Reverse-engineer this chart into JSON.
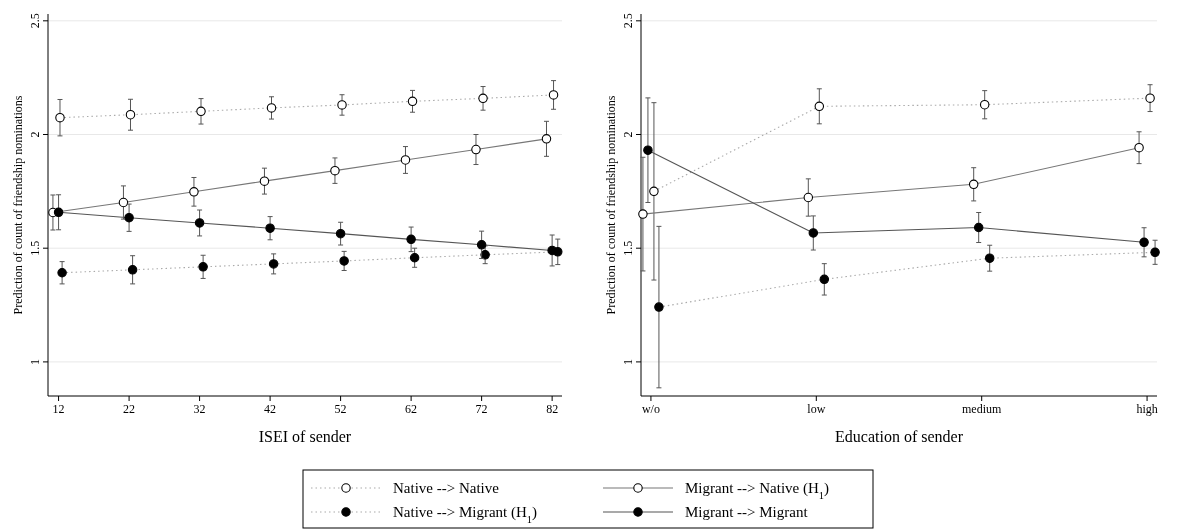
{
  "chart_data": [
    {
      "type": "line",
      "xlabel": "ISEI of sender",
      "ylabel": "Prediction of count of friendship nominations",
      "xlim": [
        10.5,
        83.4
      ],
      "xticks": [
        12,
        22,
        32,
        42,
        52,
        62,
        72,
        82
      ],
      "ylim": [
        0.85,
        2.53
      ],
      "yticks": [
        1,
        1.5,
        2,
        2.5
      ],
      "grid": "y",
      "legend": "bottom",
      "marker": "circle",
      "series": [
        {
          "name": "Native --> Native",
          "color": "#aaaaaa",
          "colors": [
            "#ffffff",
            "#ffffff",
            "#ffffff",
            "#ffffff",
            "#ffffff",
            "#ffffff",
            "#ffffff",
            "#ffffff"
          ],
          "line_style": "dotted",
          "x": [
            12.2,
            22.2,
            32.2,
            42.2,
            52.2,
            62.2,
            72.2,
            82.2
          ],
          "values": [
            2.074,
            2.087,
            2.102,
            2.117,
            2.13,
            2.146,
            2.159,
            2.174
          ],
          "errors": [
            0.08,
            0.068,
            0.056,
            0.049,
            0.045,
            0.048,
            0.052,
            0.063
          ]
        },
        {
          "name": "Migrant --> Native (H$_{1}$)",
          "color": "#777777",
          "colors": [
            "#ffffff",
            "#ffffff",
            "#ffffff",
            "#ffffff",
            "#ffffff",
            "#ffffff",
            "#ffffff",
            "#ffffff"
          ],
          "line_style": "solid",
          "x": [
            11.2,
            21.2,
            31.2,
            41.2,
            51.2,
            61.2,
            71.2,
            81.2
          ],
          "values": [
            1.657,
            1.701,
            1.748,
            1.795,
            1.841,
            1.888,
            1.934,
            1.981
          ],
          "errors": [
            0.077,
            0.073,
            0.063,
            0.057,
            0.056,
            0.059,
            0.066,
            0.077
          ]
        },
        {
          "name": "Native --> Migrant (H$_{1}$)",
          "color": "#aaaaaa",
          "colors": [
            "#000000",
            "#000000",
            "#000000",
            "#000000",
            "#000000",
            "#000000",
            "#000000",
            "#000000"
          ],
          "line_style": "dotted",
          "x": [
            12.5,
            22.5,
            32.5,
            42.5,
            52.5,
            62.5,
            72.5,
            82.8
          ],
          "values": [
            1.392,
            1.405,
            1.418,
            1.431,
            1.444,
            1.458,
            1.471,
            1.484
          ],
          "errors": [
            0.049,
            0.062,
            0.051,
            0.044,
            0.042,
            0.042,
            0.039,
            0.056
          ]
        },
        {
          "name": "Migrant --> Migrant",
          "color": "#555555",
          "colors": [
            "#000000",
            "#000000",
            "#000000",
            "#000000",
            "#000000",
            "#000000",
            "#000000",
            "#000000"
          ],
          "line_style": "solid",
          "x": [
            12,
            22,
            32,
            42,
            52,
            62,
            72,
            82
          ],
          "values": [
            1.658,
            1.634,
            1.611,
            1.588,
            1.564,
            1.539,
            1.515,
            1.49
          ],
          "errors": [
            0.077,
            0.06,
            0.057,
            0.051,
            0.05,
            0.054,
            0.06,
            0.068
          ]
        }
      ]
    },
    {
      "type": "line",
      "xlabel": "Education of sender",
      "ylabel": "Prediction of count of friendship nominations",
      "categories": [
        "w/o",
        "low",
        "medium",
        "high"
      ],
      "ylim": [
        0.85,
        2.53
      ],
      "yticks": [
        1,
        1.5,
        2,
        2.5
      ],
      "grid": "y",
      "marker": "circle",
      "series": [
        {
          "name": "Native --> Native",
          "color": "#aaaaaa",
          "colors": [
            "#ffffff",
            "#ffffff",
            "#ffffff",
            "#ffffff"
          ],
          "line_style": "dotted",
          "values": [
            1.75,
            2.124,
            2.131,
            2.16
          ],
          "errors": [
            0.39,
            0.077,
            0.062,
            0.059
          ]
        },
        {
          "name": "Migrant --> Native (H$_{1}$)",
          "color": "#777777",
          "colors": [
            "#ffffff",
            "#ffffff",
            "#ffffff",
            "#ffffff"
          ],
          "line_style": "solid",
          "values": [
            1.65,
            1.723,
            1.781,
            1.942
          ],
          "errors": [
            0.25,
            0.082,
            0.073,
            0.07
          ]
        },
        {
          "name": "Native --> Migrant (H$_{1}$)",
          "color": "#aaaaaa",
          "colors": [
            "#000000",
            "#000000",
            "#000000",
            "#000000"
          ],
          "line_style": "dotted",
          "values": [
            1.241,
            1.363,
            1.456,
            1.482
          ],
          "errors": [
            0.355,
            0.069,
            0.057,
            0.053
          ]
        },
        {
          "name": "Migrant --> Migrant",
          "color": "#555555",
          "colors": [
            "#000000",
            "#000000",
            "#000000",
            "#000000"
          ],
          "line_style": "solid",
          "values": [
            1.931,
            1.567,
            1.591,
            1.526
          ],
          "errors": [
            0.23,
            0.075,
            0.066,
            0.064
          ]
        }
      ]
    }
  ]
}
